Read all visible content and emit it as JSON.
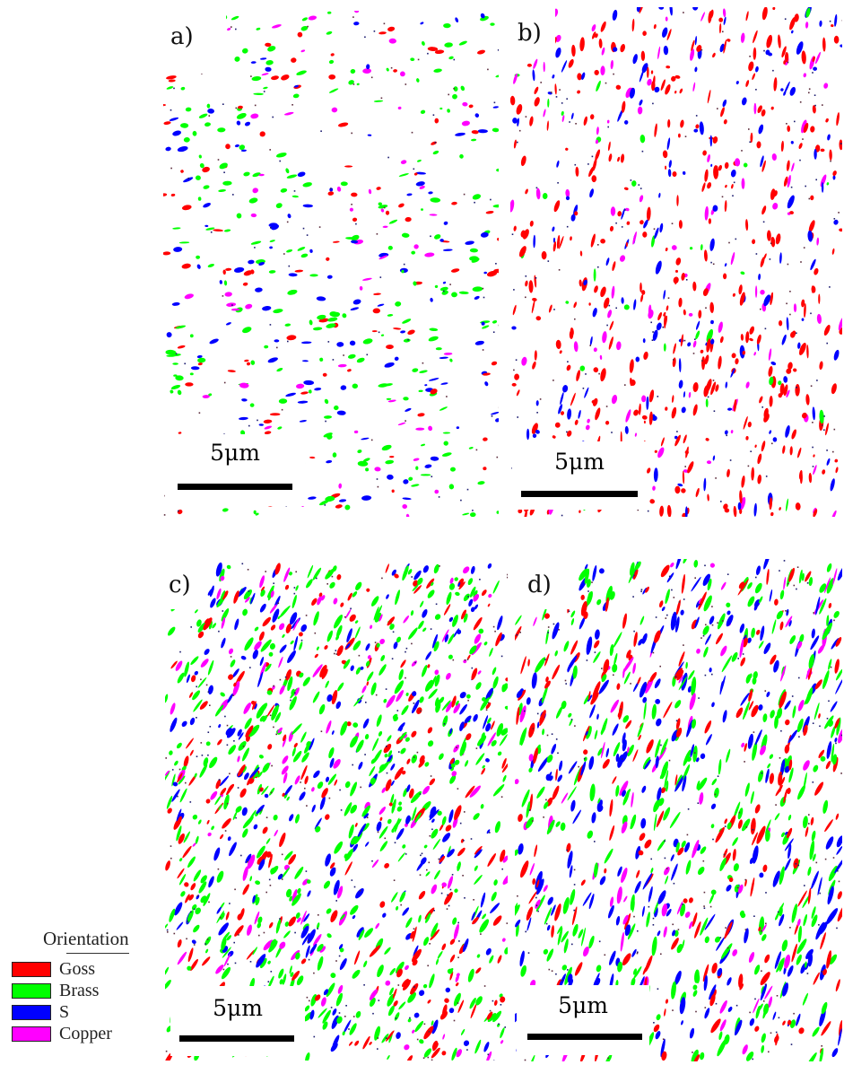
{
  "panels": [
    {
      "label": "a)",
      "scale": "5μm"
    },
    {
      "label": "b)",
      "scale": "5μm"
    },
    {
      "label": "c)",
      "scale": "5μm"
    },
    {
      "label": "d)",
      "scale": "5μm"
    }
  ],
  "legend": {
    "title": "Orientation",
    "items": [
      {
        "label": "Goss",
        "color": "#ff0000"
      },
      {
        "label": "Brass",
        "color": "#00ff00"
      },
      {
        "label": "S",
        "color": "#0000ff"
      },
      {
        "label": "Copper",
        "color": "#ff00ff"
      }
    ]
  },
  "colors": {
    "goss": "#ff0000",
    "brass": "#00ff00",
    "s": "#0000ff",
    "copper": "#ff00ff"
  }
}
